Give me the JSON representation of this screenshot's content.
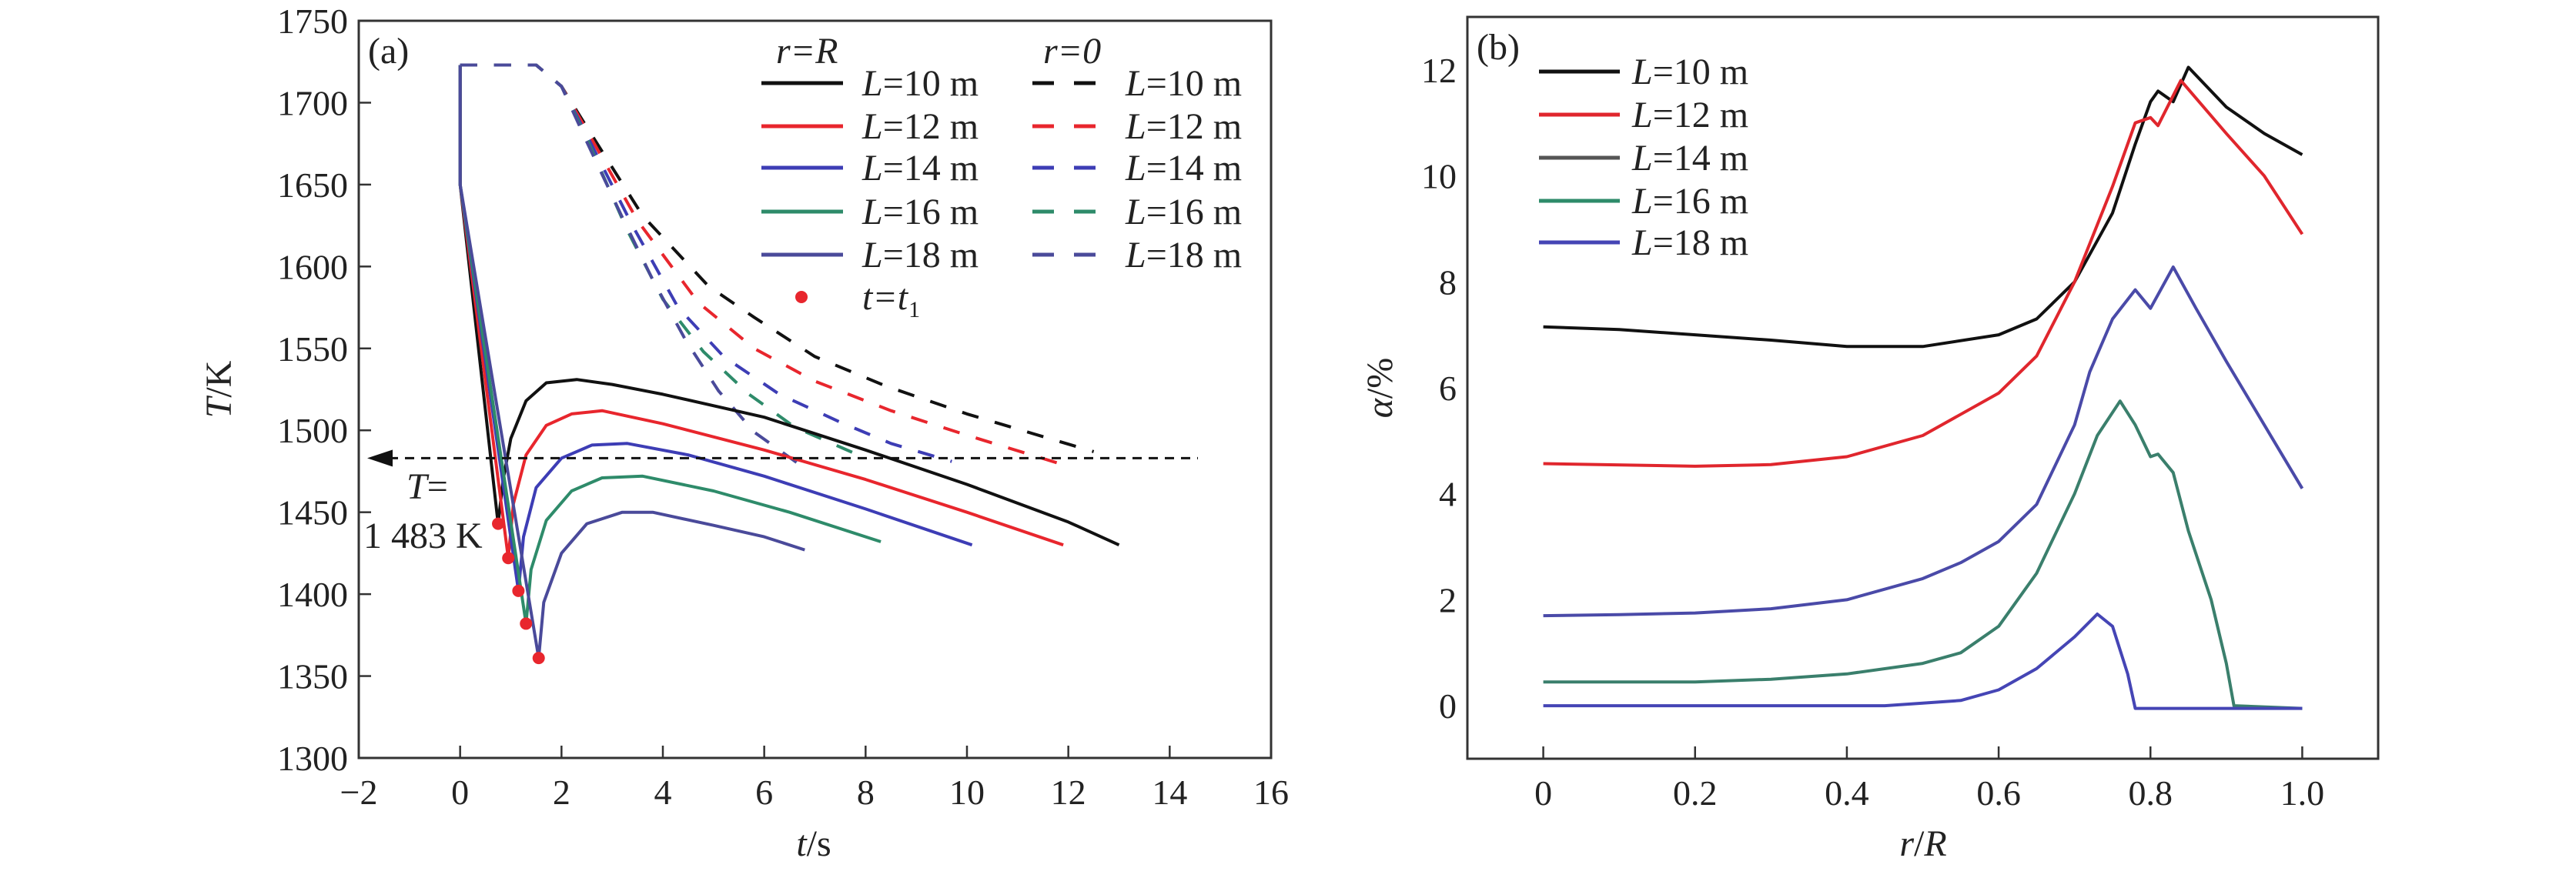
{
  "chart_data": [
    {
      "type": "line",
      "panel_label": "(a)",
      "xlabel": {
        "italic": "t",
        "rest": "/s"
      },
      "ylabel": {
        "italic": "T",
        "rest": "/K"
      },
      "xlim": [
        -2,
        16
      ],
      "ylim": [
        1300,
        1750
      ],
      "xticks": [
        -2,
        0,
        2,
        4,
        6,
        8,
        10,
        12,
        14,
        16
      ],
      "yticks": [
        1300,
        1350,
        1400,
        1450,
        1500,
        1550,
        1600,
        1650,
        1700,
        1750
      ],
      "x_tick_labels": [
        "−2",
        "0",
        "2",
        "4",
        "6",
        "8",
        "10",
        "12",
        "14",
        "16"
      ],
      "legend_headers": {
        "solid": "r=R",
        "dashed": "r=0"
      },
      "legend_marker_label": "t=t",
      "legend_marker_sub": "1",
      "legend_placement": "top-right",
      "reference_line": {
        "T": 1483,
        "label_line1": "T=",
        "label_line2": "1 483 K"
      },
      "series": [
        {
          "name": "L=10 m",
          "style": "solid",
          "color": "#111111",
          "points": [
            [
              0,
              1723
            ],
            [
              0,
              1650
            ],
            [
              0.75,
              1443
            ],
            [
              0.85,
              1470
            ],
            [
              1.0,
              1495
            ],
            [
              1.3,
              1518
            ],
            [
              1.7,
              1529
            ],
            [
              2.3,
              1531
            ],
            [
              3,
              1528
            ],
            [
              4,
              1522
            ],
            [
              6,
              1508
            ],
            [
              8,
              1488
            ],
            [
              10,
              1467
            ],
            [
              12,
              1444
            ],
            [
              13,
              1430
            ]
          ]
        },
        {
          "name": "L=12 m",
          "style": "solid",
          "color": "#e8262d",
          "points": [
            [
              0,
              1723
            ],
            [
              0,
              1650
            ],
            [
              0.95,
              1422
            ],
            [
              1.05,
              1455
            ],
            [
              1.3,
              1485
            ],
            [
              1.7,
              1503
            ],
            [
              2.2,
              1510
            ],
            [
              2.8,
              1512
            ],
            [
              4,
              1504
            ],
            [
              6,
              1488
            ],
            [
              8,
              1470
            ],
            [
              10,
              1450
            ],
            [
              11.9,
              1430
            ]
          ]
        },
        {
          "name": "L=14 m",
          "style": "solid",
          "color": "#3d3db5",
          "points": [
            [
              0,
              1723
            ],
            [
              0,
              1650
            ],
            [
              1.15,
              1402
            ],
            [
              1.25,
              1435
            ],
            [
              1.5,
              1465
            ],
            [
              2,
              1483
            ],
            [
              2.6,
              1491
            ],
            [
              3.3,
              1492
            ],
            [
              4.5,
              1485
            ],
            [
              6,
              1472
            ],
            [
              8,
              1452
            ],
            [
              10.1,
              1430
            ]
          ]
        },
        {
          "name": "L=16 m",
          "style": "solid",
          "color": "#2e8b6a",
          "points": [
            [
              0,
              1723
            ],
            [
              0,
              1650
            ],
            [
              1.3,
              1382
            ],
            [
              1.4,
              1415
            ],
            [
              1.7,
              1445
            ],
            [
              2.2,
              1463
            ],
            [
              2.8,
              1471
            ],
            [
              3.6,
              1472
            ],
            [
              5,
              1463
            ],
            [
              6.5,
              1450
            ],
            [
              8.3,
              1432
            ]
          ]
        },
        {
          "name": "L=18 m",
          "style": "solid",
          "color": "#4a4a9a",
          "points": [
            [
              0,
              1723
            ],
            [
              0,
              1650
            ],
            [
              1.55,
              1361
            ],
            [
              1.65,
              1395
            ],
            [
              2,
              1425
            ],
            [
              2.5,
              1443
            ],
            [
              3.2,
              1450
            ],
            [
              3.8,
              1450
            ],
            [
              5,
              1442
            ],
            [
              6,
              1435
            ],
            [
              6.8,
              1427
            ]
          ]
        },
        {
          "name": "L=10 m",
          "style": "dashed",
          "color": "#111111",
          "points": [
            [
              0,
              1723
            ],
            [
              1.5,
              1723
            ],
            [
              2,
              1710
            ],
            [
              2.5,
              1685
            ],
            [
              3.6,
              1631
            ],
            [
              4.9,
              1588
            ],
            [
              5.8,
              1569
            ],
            [
              7,
              1545
            ],
            [
              8.4,
              1527
            ],
            [
              10,
              1510
            ],
            [
              11.3,
              1498
            ],
            [
              12.5,
              1487
            ]
          ]
        },
        {
          "name": "L=12 m",
          "style": "dashed",
          "color": "#e8262d",
          "points": [
            [
              0,
              1723
            ],
            [
              1.5,
              1723
            ],
            [
              2,
              1710
            ],
            [
              2.5,
              1683
            ],
            [
              3.5,
              1628
            ],
            [
              4.7,
              1578
            ],
            [
              5.8,
              1550
            ],
            [
              7,
              1530
            ],
            [
              8.5,
              1512
            ],
            [
              10,
              1497
            ],
            [
              11.9,
              1479
            ]
          ]
        },
        {
          "name": "L=14 m",
          "style": "dashed",
          "color": "#3d3db5",
          "points": [
            [
              0,
              1723
            ],
            [
              1.5,
              1723
            ],
            [
              2,
              1710
            ],
            [
              2.5,
              1680
            ],
            [
              3.4,
              1625
            ],
            [
              4.3,
              1575
            ],
            [
              5.2,
              1545
            ],
            [
              6.3,
              1522
            ],
            [
              7.5,
              1505
            ],
            [
              8.5,
              1492
            ],
            [
              9.7,
              1481
            ]
          ]
        },
        {
          "name": "L=16 m",
          "style": "dashed",
          "color": "#2e8b6a",
          "points": [
            [
              0,
              1723
            ],
            [
              1.5,
              1723
            ],
            [
              2,
              1710
            ],
            [
              2.5,
              1678
            ],
            [
              3.3,
              1622
            ],
            [
              4,
              1580
            ],
            [
              4.8,
              1548
            ],
            [
              5.7,
              1522
            ],
            [
              6.6,
              1502
            ],
            [
              8,
              1483
            ]
          ]
        },
        {
          "name": "L=18 m",
          "style": "dashed",
          "color": "#4a4a9a",
          "points": [
            [
              0,
              1723
            ],
            [
              1.5,
              1723
            ],
            [
              2,
              1710
            ],
            [
              2.5,
              1676
            ],
            [
              3.2,
              1630
            ],
            [
              3.8,
              1592
            ],
            [
              4.45,
              1555
            ],
            [
              5.1,
              1524
            ],
            [
              5.8,
              1499
            ],
            [
              6.7,
              1479
            ]
          ]
        }
      ],
      "markers": {
        "name": "t=t1",
        "color": "#e8262d",
        "points": [
          [
            0.75,
            1443
          ],
          [
            0.95,
            1422
          ],
          [
            1.15,
            1402
          ],
          [
            1.3,
            1382
          ],
          [
            1.55,
            1361
          ]
        ]
      }
    },
    {
      "type": "line",
      "panel_label": "(b)",
      "xlabel": {
        "italic": "r",
        "rest": "/",
        "italic2": "R"
      },
      "ylabel": {
        "italic": "α",
        "rest": "/%"
      },
      "xlim": [
        -0.1,
        1.1
      ],
      "ylim": [
        -1,
        13
      ],
      "xticks": [
        0,
        0.2,
        0.4,
        0.6,
        0.8,
        1.0
      ],
      "x_tick_labels": [
        "0",
        "0.2",
        "0.4",
        "0.6",
        "0.8",
        "1.0"
      ],
      "yticks": [
        0,
        2,
        4,
        6,
        8,
        10,
        12
      ],
      "legend_placement": "top-left",
      "series": [
        {
          "name": "L=10 m",
          "color": "#111111",
          "points": [
            [
              0,
              7.15
            ],
            [
              0.1,
              7.1
            ],
            [
              0.2,
              7.0
            ],
            [
              0.3,
              6.9
            ],
            [
              0.4,
              6.78
            ],
            [
              0.5,
              6.78
            ],
            [
              0.6,
              7.0
            ],
            [
              0.65,
              7.3
            ],
            [
              0.7,
              8.0
            ],
            [
              0.75,
              9.3
            ],
            [
              0.78,
              10.6
            ],
            [
              0.8,
              11.4
            ],
            [
              0.81,
              11.6
            ],
            [
              0.83,
              11.4
            ],
            [
              0.85,
              12.05
            ],
            [
              0.9,
              11.3
            ],
            [
              0.95,
              10.8
            ],
            [
              1.0,
              10.4
            ]
          ]
        },
        {
          "name": "L=12 m",
          "color": "#e0262d",
          "points": [
            [
              0,
              4.57
            ],
            [
              0.2,
              4.52
            ],
            [
              0.3,
              4.55
            ],
            [
              0.4,
              4.7
            ],
            [
              0.5,
              5.1
            ],
            [
              0.6,
              5.9
            ],
            [
              0.65,
              6.6
            ],
            [
              0.7,
              8.0
            ],
            [
              0.75,
              9.8
            ],
            [
              0.78,
              11.0
            ],
            [
              0.8,
              11.1
            ],
            [
              0.81,
              10.95
            ],
            [
              0.84,
              11.8
            ],
            [
              0.9,
              10.8
            ],
            [
              0.95,
              10.0
            ],
            [
              1.0,
              8.9
            ]
          ]
        },
        {
          "name": "L=14 m",
          "color": "#4a4aa8",
          "points": [
            [
              0,
              1.7
            ],
            [
              0.1,
              1.72
            ],
            [
              0.2,
              1.75
            ],
            [
              0.3,
              1.83
            ],
            [
              0.4,
              2.0
            ],
            [
              0.5,
              2.4
            ],
            [
              0.55,
              2.7
            ],
            [
              0.6,
              3.1
            ],
            [
              0.65,
              3.8
            ],
            [
              0.7,
              5.3
            ],
            [
              0.72,
              6.3
            ],
            [
              0.75,
              7.3
            ],
            [
              0.78,
              7.85
            ],
            [
              0.8,
              7.5
            ],
            [
              0.83,
              8.28
            ],
            [
              0.86,
              7.5
            ],
            [
              0.9,
              6.5
            ],
            [
              0.95,
              5.3
            ],
            [
              1.0,
              4.1
            ]
          ]
        },
        {
          "name": "L=16 m",
          "color": "#3a7f6c",
          "points": [
            [
              0,
              0.45
            ],
            [
              0.2,
              0.45
            ],
            [
              0.3,
              0.5
            ],
            [
              0.4,
              0.6
            ],
            [
              0.5,
              0.8
            ],
            [
              0.55,
              1.0
            ],
            [
              0.6,
              1.5
            ],
            [
              0.65,
              2.5
            ],
            [
              0.7,
              4.0
            ],
            [
              0.73,
              5.1
            ],
            [
              0.76,
              5.75
            ],
            [
              0.78,
              5.3
            ],
            [
              0.8,
              4.7
            ],
            [
              0.81,
              4.75
            ],
            [
              0.83,
              4.4
            ],
            [
              0.85,
              3.3
            ],
            [
              0.88,
              2.0
            ],
            [
              0.9,
              0.8
            ],
            [
              0.91,
              0.0
            ],
            [
              1.0,
              -0.05
            ]
          ]
        },
        {
          "name": "L=18 m",
          "color": "#4545b5",
          "points": [
            [
              0,
              0
            ],
            [
              0.45,
              0
            ],
            [
              0.5,
              0.05
            ],
            [
              0.55,
              0.1
            ],
            [
              0.6,
              0.3
            ],
            [
              0.65,
              0.7
            ],
            [
              0.7,
              1.3
            ],
            [
              0.73,
              1.73
            ],
            [
              0.75,
              1.5
            ],
            [
              0.77,
              0.6
            ],
            [
              0.78,
              -0.05
            ],
            [
              1.0,
              -0.05
            ]
          ]
        }
      ],
      "legend_colors": [
        "#111111",
        "#e0262d",
        "#555555",
        "#2e8b6a",
        "#4545b5"
      ]
    }
  ]
}
